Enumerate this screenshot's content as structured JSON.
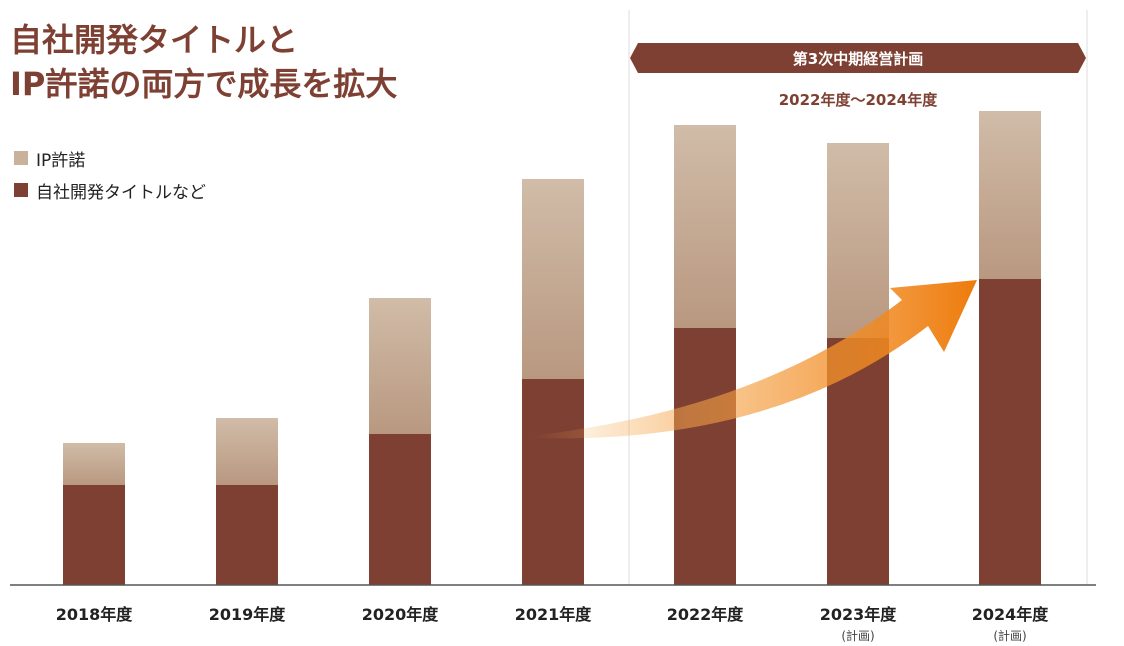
{
  "title": {
    "line1": "自社開発タイトルと",
    "line2": "IP許諾の両方で成長を拡大"
  },
  "legend": [
    {
      "label": "IP許諾",
      "color": "#c9b29c"
    },
    {
      "label": "自社開発タイトルなど",
      "color": "#7e4033"
    }
  ],
  "plan_banner": {
    "label": "第3次中期経営計画",
    "period": "2022年度〜2024年度"
  },
  "chart_data": {
    "type": "bar",
    "stacked": true,
    "categories": [
      "2018年度",
      "2019年度",
      "2020年度",
      "2021年度",
      "2022年度",
      "2023年度",
      "2024年度"
    ],
    "category_notes": [
      "",
      "",
      "",
      "",
      "",
      "(計画)",
      "(計画)"
    ],
    "series": [
      {
        "name": "自社開発タイトルなど",
        "color": "#7e4033",
        "values": [
          100,
          100,
          151,
          206,
          257,
          247,
          306
        ]
      },
      {
        "name": "IP許諾",
        "color": "#c9b29c",
        "values": [
          42,
          67,
          136,
          200,
          203,
          195,
          168
        ]
      }
    ],
    "ylim": [
      0,
      480
    ],
    "grid": false,
    "legend_position": "top-left",
    "annotation": "growth-arrow"
  }
}
